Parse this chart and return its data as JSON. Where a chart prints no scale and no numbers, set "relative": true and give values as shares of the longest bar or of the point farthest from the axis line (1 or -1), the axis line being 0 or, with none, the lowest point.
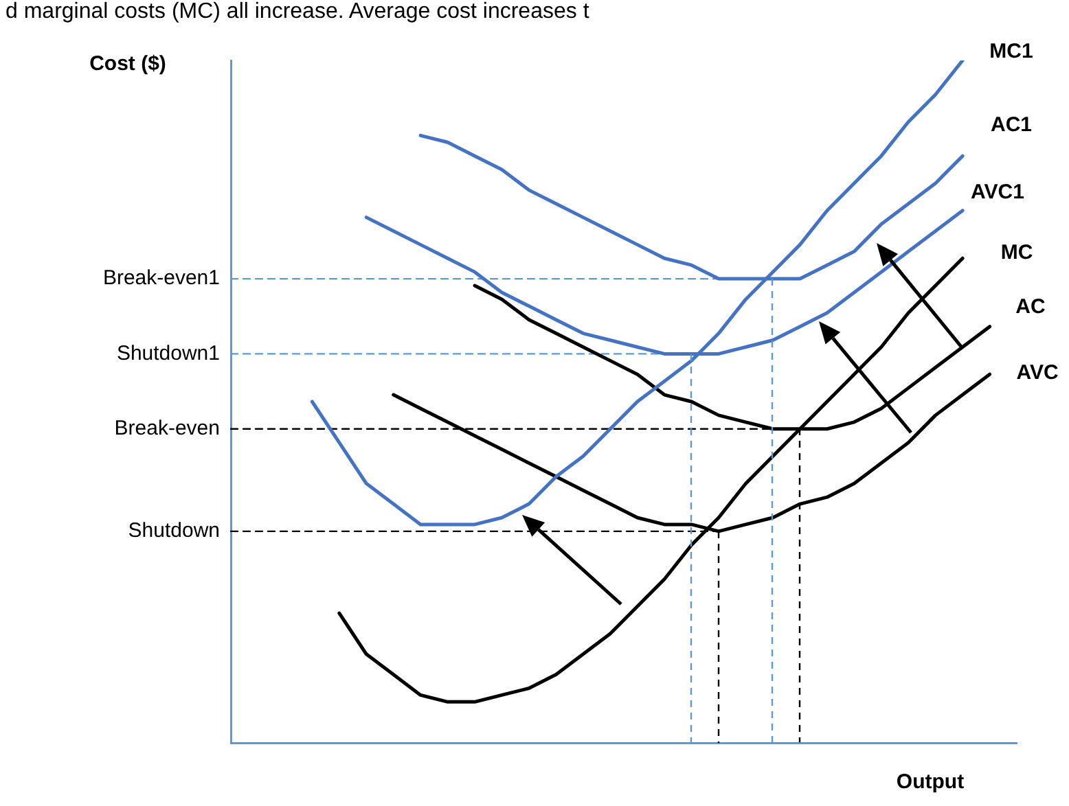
{
  "chart_data": {
    "type": "line",
    "title": "d marginal costs (MC) all increase. Average cost increases t",
    "ylabel": "Cost ($)",
    "xlabel": "Output",
    "relative": true,
    "categories": [
      null,
      null,
      null,
      null,
      null,
      null,
      null,
      null,
      null,
      null,
      null,
      null,
      null,
      null,
      null,
      null,
      null,
      null,
      null,
      null,
      null,
      null,
      null,
      null,
      null,
      null,
      null,
      null,
      null,
      null
    ],
    "series": [
      {
        "name": "MC1",
        "color": "#4472c4",
        "values": [
          null,
          null,
          null,
          0.5,
          0.44,
          0.38,
          0.35,
          0.32,
          0.32,
          0.32,
          0.33,
          0.35,
          0.39,
          0.42,
          0.46,
          0.5,
          0.53,
          0.56,
          0.6,
          0.65,
          0.69,
          0.73,
          0.78,
          0.82,
          0.86,
          0.91,
          0.95,
          1,
          null,
          null
        ]
      },
      {
        "name": "AC1",
        "color": "#4472c4",
        "values": [
          null,
          null,
          null,
          null,
          null,
          null,
          null,
          0.89,
          0.88,
          0.86,
          0.84,
          0.81,
          0.79,
          0.77,
          0.75,
          0.73,
          0.71,
          0.7,
          0.68,
          0.68,
          0.68,
          0.68,
          0.7,
          0.72,
          0.76,
          0.79,
          0.82,
          0.86,
          null,
          null
        ]
      },
      {
        "name": "AVC1",
        "color": "#4472c4",
        "values": [
          null,
          null,
          null,
          null,
          null,
          0.77,
          0.75,
          0.73,
          0.71,
          0.69,
          0.66,
          0.64,
          0.62,
          0.6,
          0.59,
          0.58,
          0.57,
          0.57,
          0.57,
          0.58,
          0.59,
          0.61,
          0.63,
          0.66,
          0.69,
          0.72,
          0.75,
          0.78,
          null,
          null
        ]
      },
      {
        "name": "MC",
        "color": "#000000",
        "values": [
          null,
          null,
          null,
          null,
          0.19,
          0.13,
          0.1,
          0.07,
          0.06,
          0.06,
          0.07,
          0.08,
          0.1,
          0.13,
          0.16,
          0.2,
          0.24,
          0.29,
          0.33,
          0.38,
          0.42,
          0.46,
          0.5,
          0.54,
          0.58,
          0.63,
          0.67,
          0.71,
          null,
          null
        ]
      },
      {
        "name": "AC",
        "color": "#000000",
        "values": [
          null,
          null,
          null,
          null,
          null,
          null,
          null,
          null,
          null,
          0.67,
          0.65,
          0.62,
          0.6,
          0.58,
          0.56,
          0.54,
          0.51,
          0.5,
          0.48,
          0.47,
          0.46,
          0.46,
          0.46,
          0.47,
          0.49,
          0.52,
          0.55,
          0.58,
          0.61,
          null
        ]
      },
      {
        "name": "AVC",
        "color": "#000000",
        "values": [
          null,
          null,
          null,
          null,
          null,
          null,
          0.51,
          0.49,
          0.47,
          0.45,
          0.43,
          0.41,
          0.39,
          0.37,
          0.35,
          0.33,
          0.32,
          0.32,
          0.31,
          0.32,
          0.33,
          0.35,
          0.36,
          0.38,
          0.41,
          0.44,
          0.48,
          0.51,
          0.54,
          null
        ]
      },
      {
        "name": "Break-even1",
        "color": "#5b9bd5",
        "line_style": "dashed",
        "values": [
          0.68,
          0.68,
          0.68,
          0.68,
          0.68,
          0.68,
          0.68,
          0.68,
          0.68,
          0.68,
          0.68,
          0.68,
          0.68,
          0.68,
          0.68,
          0.68,
          0.68,
          0.68,
          0.68,
          0.68,
          0.68,
          null,
          null,
          null,
          null,
          null,
          null,
          null,
          null,
          null
        ]
      },
      {
        "name": "Shutdown1",
        "color": "#5b9bd5",
        "line_style": "dashed",
        "values": [
          0.57,
          0.57,
          0.57,
          0.57,
          0.57,
          0.57,
          0.57,
          0.57,
          0.57,
          0.57,
          0.57,
          0.57,
          0.57,
          0.57,
          0.57,
          0.57,
          0.57,
          0.57,
          null,
          null,
          null,
          null,
          null,
          null,
          null,
          null,
          null,
          null,
          null,
          null
        ]
      },
      {
        "name": "Break-even",
        "color": "#000000",
        "line_style": "dashed",
        "values": [
          0.46,
          0.46,
          0.46,
          0.46,
          0.46,
          0.46,
          0.46,
          0.46,
          0.46,
          0.46,
          0.46,
          0.46,
          0.46,
          0.46,
          0.46,
          0.46,
          0.46,
          0.46,
          0.46,
          0.46,
          0.46,
          0.46,
          null,
          null,
          null,
          null,
          null,
          null,
          null,
          null
        ]
      },
      {
        "name": "Shutdown",
        "color": "#000000",
        "line_style": "dashed",
        "values": [
          0.31,
          0.31,
          0.31,
          0.31,
          0.31,
          0.31,
          0.31,
          0.31,
          0.31,
          0.31,
          0.31,
          0.31,
          0.31,
          0.31,
          0.31,
          0.31,
          0.31,
          0.31,
          0.31,
          null,
          null,
          null,
          null,
          null,
          null,
          null,
          null,
          null,
          null,
          null
        ]
      }
    ]
  }
}
